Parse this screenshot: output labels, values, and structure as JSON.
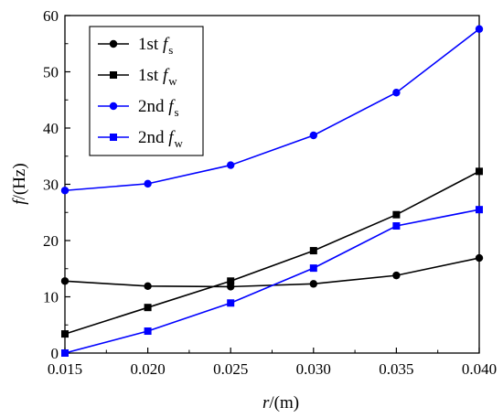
{
  "chart_data": {
    "type": "line",
    "x": [
      0.015,
      0.02,
      0.025,
      0.03,
      0.035,
      0.04
    ],
    "x_tick_labels": [
      "0.015",
      "0.020",
      "0.025",
      "0.030",
      "0.035",
      "0.040"
    ],
    "y_ticks": [
      0,
      10,
      20,
      30,
      40,
      50,
      60
    ],
    "xlim": [
      0.015,
      0.04
    ],
    "ylim": [
      0,
      60
    ],
    "xlabel": {
      "var": "r",
      "rest": "/(m)"
    },
    "ylabel": {
      "var": "f",
      "rest": "/(Hz)"
    },
    "grid": false,
    "legend_position": "top-left",
    "series": [
      {
        "prefix": "1st ",
        "var": "f",
        "sub": "s",
        "color": "#000000",
        "marker": "circle",
        "values": [
          12.8,
          11.9,
          11.8,
          12.3,
          13.8,
          16.9
        ]
      },
      {
        "prefix": "1st ",
        "var": "f",
        "sub": "w",
        "color": "#000000",
        "marker": "square",
        "values": [
          3.4,
          8.1,
          12.8,
          18.2,
          24.6,
          32.3
        ]
      },
      {
        "prefix": "2nd ",
        "var": "f",
        "sub": "s",
        "color": "#0000ff",
        "marker": "circle",
        "values": [
          28.9,
          30.1,
          33.4,
          38.7,
          46.3,
          57.6
        ]
      },
      {
        "prefix": "2nd ",
        "var": "f",
        "sub": "w",
        "color": "#0000ff",
        "marker": "square",
        "values": [
          0.0,
          3.9,
          8.9,
          15.1,
          22.6,
          25.5
        ]
      }
    ]
  }
}
